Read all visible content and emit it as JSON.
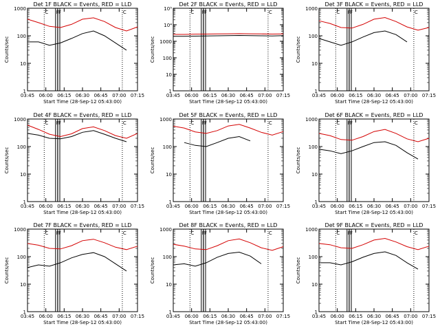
{
  "figure": {
    "x_tick_labels": [
      "03:45",
      "06:00",
      "06:15",
      "06:30",
      "06:45",
      "07:00",
      "07:15"
    ],
    "x_label": "Start Time (28-Sep-12 05:43:00)",
    "y_label": "Counts/sec",
    "colors": {
      "events": "#000000",
      "lld": "#d40000"
    }
  },
  "chart_data": [
    {
      "type": "line",
      "title": "Det 1F BLACK = Events, RED = LLD",
      "y_scale": "log",
      "ylim": [
        1,
        1000
      ],
      "y_tick_labels": [
        "1",
        "10",
        "100",
        "1000"
      ],
      "x": [
        0,
        0.1,
        0.2,
        0.3,
        0.4,
        0.5,
        0.6,
        0.7,
        0.8,
        0.9,
        1
      ],
      "series": [
        {
          "name": "Events",
          "values": [
            60,
            60,
            45,
            55,
            80,
            120,
            150,
            100,
            55,
            30,
            null
          ]
        },
        {
          "name": "LLD",
          "values": [
            400,
            300,
            220,
            200,
            260,
            400,
            450,
            330,
            200,
            150,
            210
          ]
        }
      ],
      "vertical_markers": [
        "C",
        "F",
        "F",
        "C"
      ]
    },
    {
      "type": "line",
      "title": "Det 2F BLACK = Events, RED = LLD",
      "y_scale": "log",
      "ylim": [
        1,
        100000
      ],
      "y_tick_labels": [
        "1",
        "10",
        "100",
        "1000",
        "10⁴",
        "10⁵"
      ],
      "x": [
        0,
        0.1,
        0.2,
        0.3,
        0.4,
        0.5,
        0.6,
        0.7,
        0.8,
        0.9,
        1
      ],
      "series": [
        {
          "name": "Events",
          "values": [
            2000,
            2000,
            2050,
            2100,
            2150,
            2200,
            2250,
            2200,
            2150,
            2100,
            2200
          ]
        },
        {
          "name": "LLD",
          "values": [
            2600,
            2600,
            2700,
            2750,
            2800,
            2850,
            2900,
            2850,
            2800,
            2750,
            2800
          ]
        }
      ],
      "vertical_markers": [
        "C",
        "F",
        "F",
        "C"
      ]
    },
    {
      "type": "line",
      "title": "Det 3F BLACK = Events, RED = LLD",
      "y_scale": "log",
      "ylim": [
        1,
        1000
      ],
      "y_tick_labels": [
        "1",
        "10",
        "100",
        "1000"
      ],
      "x": [
        0,
        0.1,
        0.2,
        0.3,
        0.4,
        0.5,
        0.6,
        0.7,
        0.8,
        0.9,
        1
      ],
      "series": [
        {
          "name": "Events",
          "values": [
            80,
            60,
            45,
            60,
            90,
            130,
            150,
            110,
            60,
            null,
            null
          ]
        },
        {
          "name": "LLD",
          "values": [
            350,
            280,
            200,
            190,
            260,
            400,
            460,
            330,
            210,
            160,
            200
          ]
        }
      ],
      "vertical_markers": [
        "C",
        "F",
        "F",
        "C"
      ]
    },
    {
      "type": "line",
      "title": "Det 4F BLACK = Events, RED = LLD",
      "y_scale": "log",
      "ylim": [
        1,
        1000
      ],
      "y_tick_labels": [
        "1",
        "10",
        "100",
        "1000"
      ],
      "x": [
        0,
        0.1,
        0.2,
        0.3,
        0.4,
        0.5,
        0.6,
        0.7,
        0.8,
        0.9,
        1
      ],
      "series": [
        {
          "name": "Events",
          "values": [
            300,
            260,
            200,
            190,
            230,
            330,
            380,
            280,
            200,
            150,
            null
          ]
        },
        {
          "name": "LLD",
          "values": [
            600,
            420,
            280,
            230,
            290,
            450,
            520,
            380,
            250,
            200,
            300
          ]
        }
      ],
      "vertical_markers": [
        "C",
        "F",
        "F",
        "C"
      ]
    },
    {
      "type": "line",
      "title": "Det 5F BLACK = Events, RED = LLD",
      "y_scale": "log",
      "ylim": [
        1,
        1000
      ],
      "y_tick_labels": [
        "1",
        "10",
        "100",
        "1000"
      ],
      "x": [
        0,
        0.1,
        0.2,
        0.3,
        0.4,
        0.5,
        0.6,
        0.7,
        0.8,
        0.9,
        1
      ],
      "series": [
        {
          "name": "Events",
          "values": [
            null,
            140,
            110,
            100,
            140,
            200,
            230,
            160,
            null,
            null,
            null
          ]
        },
        {
          "name": "LLD",
          "values": [
            550,
            470,
            340,
            300,
            380,
            560,
            640,
            470,
            330,
            260,
            350
          ]
        }
      ],
      "vertical_markers": [
        "C",
        "F",
        "F",
        "C"
      ]
    },
    {
      "type": "line",
      "title": "Det 6F BLACK = Events, RED = LLD",
      "y_scale": "log",
      "ylim": [
        1,
        1000
      ],
      "y_tick_labels": [
        "1",
        "10",
        "100",
        "1000"
      ],
      "x": [
        0,
        0.1,
        0.2,
        0.3,
        0.4,
        0.5,
        0.6,
        0.7,
        0.8,
        0.9,
        1
      ],
      "series": [
        {
          "name": "Events",
          "values": [
            80,
            70,
            55,
            70,
            100,
            140,
            150,
            110,
            60,
            35,
            null
          ]
        },
        {
          "name": "LLD",
          "values": [
            300,
            250,
            180,
            170,
            230,
            350,
            420,
            300,
            190,
            150,
            200
          ]
        }
      ],
      "vertical_markers": [
        "C",
        "F",
        "F",
        "C"
      ]
    },
    {
      "type": "line",
      "title": "Det 7F BLACK = Events, RED = LLD",
      "y_scale": "log",
      "ylim": [
        1,
        1000
      ],
      "y_tick_labels": [
        "1",
        "10",
        "100",
        "1000"
      ],
      "x": [
        0,
        0.1,
        0.2,
        0.3,
        0.4,
        0.5,
        0.6,
        0.7,
        0.8,
        0.9,
        1
      ],
      "series": [
        {
          "name": "Events",
          "values": [
            40,
            50,
            45,
            60,
            90,
            120,
            140,
            100,
            55,
            30,
            null
          ]
        },
        {
          "name": "LLD",
          "values": [
            300,
            260,
            200,
            190,
            250,
            380,
            430,
            320,
            220,
            180,
            240
          ]
        }
      ],
      "vertical_markers": [
        "C",
        "F",
        "F",
        "C"
      ]
    },
    {
      "type": "line",
      "title": "Det 8F BLACK = Events, RED = LLD",
      "y_scale": "log",
      "ylim": [
        1,
        1000
      ],
      "y_tick_labels": [
        "1",
        "10",
        "100",
        "1000"
      ],
      "x": [
        0,
        0.1,
        0.2,
        0.3,
        0.4,
        0.5,
        0.6,
        0.7,
        0.8,
        0.9,
        1
      ],
      "series": [
        {
          "name": "Events",
          "values": [
            50,
            55,
            45,
            60,
            95,
            130,
            145,
            105,
            55,
            null,
            null
          ]
        },
        {
          "name": "LLD",
          "values": [
            280,
            240,
            190,
            180,
            250,
            380,
            440,
            320,
            210,
            170,
            230
          ]
        }
      ],
      "vertical_markers": [
        "C",
        "F",
        "F",
        "C"
      ]
    },
    {
      "type": "line",
      "title": "Det 9F BLACK = Events, RED = LLD",
      "y_scale": "log",
      "ylim": [
        1,
        1000
      ],
      "y_tick_labels": [
        "1",
        "10",
        "100",
        "1000"
      ],
      "x": [
        0,
        0.1,
        0.2,
        0.3,
        0.4,
        0.5,
        0.6,
        0.7,
        0.8,
        0.9,
        1
      ],
      "series": [
        {
          "name": "Events",
          "values": [
            60,
            60,
            50,
            65,
            95,
            130,
            150,
            110,
            60,
            35,
            null
          ]
        },
        {
          "name": "LLD",
          "values": [
            300,
            270,
            210,
            200,
            270,
            400,
            460,
            340,
            230,
            180,
            240
          ]
        }
      ],
      "vertical_markers": [
        "C",
        "F",
        "F",
        "C"
      ]
    }
  ]
}
